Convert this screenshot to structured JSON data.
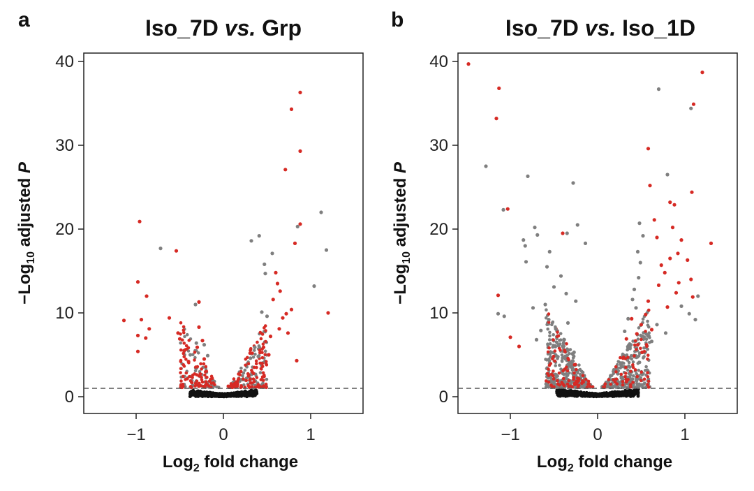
{
  "panels": [
    {
      "letter": "a",
      "title_left": "Iso_7D",
      "title_vs": "vs.",
      "title_right": "Grp",
      "ylabel_prefix": "−Log",
      "ylabel_sub": "10",
      "ylabel_mid": " adjusted ",
      "ylabel_p": "P",
      "xlabel_prefix": "Log",
      "xlabel_sub": "2",
      "xlabel_suffix": " fold change"
    },
    {
      "letter": "b",
      "title_left": "Iso_7D",
      "title_vs": "vs.",
      "title_right": "Iso_1D",
      "ylabel_prefix": "−Log",
      "ylabel_sub": "10",
      "ylabel_mid": " adjusted ",
      "ylabel_p": "P",
      "xlabel_prefix": "Log",
      "xlabel_sub": "2",
      "xlabel_suffix": " fold change"
    }
  ],
  "colors": {
    "significant": "#d62a24",
    "nonsignificant": "#7f7f7f",
    "baseline": "#111111",
    "threshold_line": "#555555"
  },
  "chart_data": [
    {
      "type": "scatter",
      "title": "Iso_7D vs. Grp",
      "xlabel": "Log2 fold change",
      "ylabel": "−Log10 adjusted P",
      "xlim": [
        -1.6,
        1.6
      ],
      "ylim": [
        -2,
        41
      ],
      "xticks": [
        -1,
        0,
        1
      ],
      "xtick_labels": [
        "−1",
        "0",
        "1"
      ],
      "yticks": [
        0,
        10,
        20,
        30,
        40
      ],
      "ytick_labels": [
        "0",
        "10",
        "20",
        "30",
        "40"
      ],
      "threshold_y": 1.0,
      "red_points": [
        [
          0.88,
          36.3
        ],
        [
          0.78,
          34.3
        ],
        [
          0.88,
          29.3
        ],
        [
          0.71,
          27.1
        ],
        [
          -0.96,
          20.9
        ],
        [
          0.82,
          18.3
        ],
        [
          0.88,
          20.6
        ],
        [
          1.2,
          10.0
        ],
        [
          -0.54,
          17.4
        ],
        [
          -0.98,
          13.7
        ],
        [
          -0.88,
          12.0
        ],
        [
          -0.28,
          11.3
        ],
        [
          -0.94,
          9.2
        ],
        [
          -0.85,
          8.1
        ],
        [
          -0.62,
          9.4
        ],
        [
          -0.98,
          7.3
        ],
        [
          -0.98,
          5.4
        ],
        [
          -0.89,
          7.0
        ],
        [
          -1.14,
          9.1
        ],
        [
          -0.52,
          7.6
        ],
        [
          0.6,
          14.8
        ],
        [
          0.62,
          13.5
        ],
        [
          0.65,
          12.6
        ],
        [
          0.57,
          11.6
        ],
        [
          0.72,
          9.9
        ],
        [
          0.78,
          10.4
        ],
        [
          0.68,
          9.4
        ],
        [
          0.64,
          8.1
        ],
        [
          0.74,
          7.6
        ],
        [
          0.54,
          7.2
        ],
        [
          0.84,
          4.3
        ],
        [
          -0.28,
          8.3
        ],
        [
          -0.24,
          6.7
        ],
        [
          -0.45,
          5.5
        ],
        [
          -0.5,
          6.9
        ],
        [
          -0.3,
          5.9
        ],
        [
          -0.22,
          4.5
        ],
        [
          -0.4,
          4.2
        ],
        [
          0.46,
          5.9
        ],
        [
          0.52,
          5.0
        ]
      ],
      "gray_points": [
        [
          0.85,
          20.3
        ],
        [
          1.12,
          22.0
        ],
        [
          1.18,
          17.5
        ],
        [
          -0.72,
          17.7
        ],
        [
          0.32,
          18.6
        ],
        [
          0.41,
          19.2
        ],
        [
          0.56,
          17.1
        ],
        [
          0.48,
          14.7
        ],
        [
          1.04,
          13.2
        ],
        [
          0.47,
          15.8
        ],
        [
          -0.32,
          11.0
        ],
        [
          0.44,
          10.1
        ],
        [
          0.5,
          9.6
        ],
        [
          -0.31,
          6.4
        ],
        [
          -0.22,
          6.2
        ],
        [
          0.36,
          5.9
        ],
        [
          0.4,
          4.8
        ],
        [
          -0.38,
          5.0
        ],
        [
          0.31,
          4.6
        ],
        [
          -0.18,
          4.9
        ]
      ],
      "cloud": {
        "n_red": 200,
        "n_gray": 150,
        "n_black": 600,
        "xmax": 0.45,
        "ymax": 7.5
      }
    },
    {
      "type": "scatter",
      "title": "Iso_7D vs. Iso_1D",
      "xlabel": "Log2 fold change",
      "ylabel": "−Log10 adjusted P",
      "xlim": [
        -1.6,
        1.6
      ],
      "ylim": [
        -2,
        41
      ],
      "xticks": [
        -1,
        0,
        1
      ],
      "xtick_labels": [
        "−1",
        "0",
        "1"
      ],
      "yticks": [
        0,
        10,
        20,
        30,
        40
      ],
      "ytick_labels": [
        "0",
        "10",
        "20",
        "30",
        "40"
      ],
      "threshold_y": 1.0,
      "red_points": [
        [
          -1.48,
          39.7
        ],
        [
          -1.13,
          36.8
        ],
        [
          -1.16,
          33.2
        ],
        [
          1.2,
          38.7
        ],
        [
          1.1,
          34.9
        ],
        [
          -1.03,
          22.4
        ],
        [
          -1.14,
          12.1
        ],
        [
          0.58,
          29.6
        ],
        [
          1.3,
          18.3
        ],
        [
          -0.4,
          19.5
        ],
        [
          0.6,
          25.2
        ],
        [
          0.83,
          23.2
        ],
        [
          0.88,
          22.9
        ],
        [
          0.86,
          20.2
        ],
        [
          0.96,
          18.7
        ],
        [
          0.92,
          17.1
        ],
        [
          1.03,
          16.3
        ],
        [
          0.77,
          14.8
        ],
        [
          0.7,
          13.3
        ],
        [
          0.9,
          12.4
        ],
        [
          0.8,
          10.7
        ],
        [
          1.08,
          24.4
        ],
        [
          1.07,
          14.0
        ],
        [
          1.09,
          11.9
        ],
        [
          0.68,
          19.0
        ],
        [
          0.65,
          21.1
        ],
        [
          0.73,
          15.7
        ],
        [
          0.83,
          16.5
        ],
        [
          0.93,
          13.6
        ],
        [
          0.55,
          9.8
        ],
        [
          0.5,
          8.6
        ],
        [
          0.62,
          8.0
        ],
        [
          0.45,
          7.5
        ],
        [
          0.58,
          11.4
        ],
        [
          0.46,
          6.2
        ],
        [
          0.51,
          5.3
        ],
        [
          0.39,
          9.3
        ],
        [
          0.33,
          6.9
        ],
        [
          -1.0,
          7.1
        ],
        [
          -0.9,
          6.0
        ]
      ],
      "gray_points": [
        [
          0.7,
          36.7
        ],
        [
          1.07,
          34.4
        ],
        [
          -1.28,
          27.5
        ],
        [
          -0.8,
          26.3
        ],
        [
          -0.28,
          25.5
        ],
        [
          0.8,
          26.5
        ],
        [
          -1.08,
          22.3
        ],
        [
          -0.85,
          18.7
        ],
        [
          -0.83,
          18.0
        ],
        [
          -0.14,
          18.3
        ],
        [
          -0.72,
          20.2
        ],
        [
          -0.69,
          19.3
        ],
        [
          -0.55,
          17.3
        ],
        [
          -0.82,
          16.1
        ],
        [
          -0.23,
          20.5
        ],
        [
          -0.35,
          19.5
        ],
        [
          -1.14,
          9.9
        ],
        [
          -1.07,
          9.6
        ],
        [
          -0.58,
          15.5
        ],
        [
          -0.5,
          13.1
        ],
        [
          -0.36,
          12.3
        ],
        [
          -0.6,
          11.0
        ],
        [
          -0.25,
          11.4
        ],
        [
          -0.42,
          14.4
        ],
        [
          -0.74,
          10.6
        ],
        [
          0.48,
          20.7
        ],
        [
          0.52,
          19.2
        ],
        [
          0.46,
          17.3
        ],
        [
          0.49,
          16.0
        ],
        [
          0.47,
          14.2
        ],
        [
          0.42,
          12.8
        ],
        [
          0.4,
          11.6
        ],
        [
          0.44,
          10.6
        ],
        [
          0.96,
          10.8
        ],
        [
          1.05,
          9.9
        ],
        [
          1.15,
          12.0
        ],
        [
          1.12,
          9.2
        ],
        [
          0.68,
          8.6
        ],
        [
          0.78,
          7.6
        ],
        [
          0.62,
          6.6
        ],
        [
          -0.65,
          7.9
        ],
        [
          -0.7,
          6.8
        ],
        [
          -0.56,
          9.2
        ],
        [
          -0.48,
          8.1
        ],
        [
          -0.34,
          8.8
        ],
        [
          -0.45,
          6.1
        ],
        [
          -0.27,
          5.3
        ],
        [
          0.35,
          9.3
        ],
        [
          0.31,
          7.8
        ],
        [
          0.37,
          5.9
        ]
      ],
      "cloud": {
        "n_red": 140,
        "n_gray": 650,
        "n_black": 700,
        "xmax": 0.55,
        "ymax": 9.0
      }
    }
  ]
}
